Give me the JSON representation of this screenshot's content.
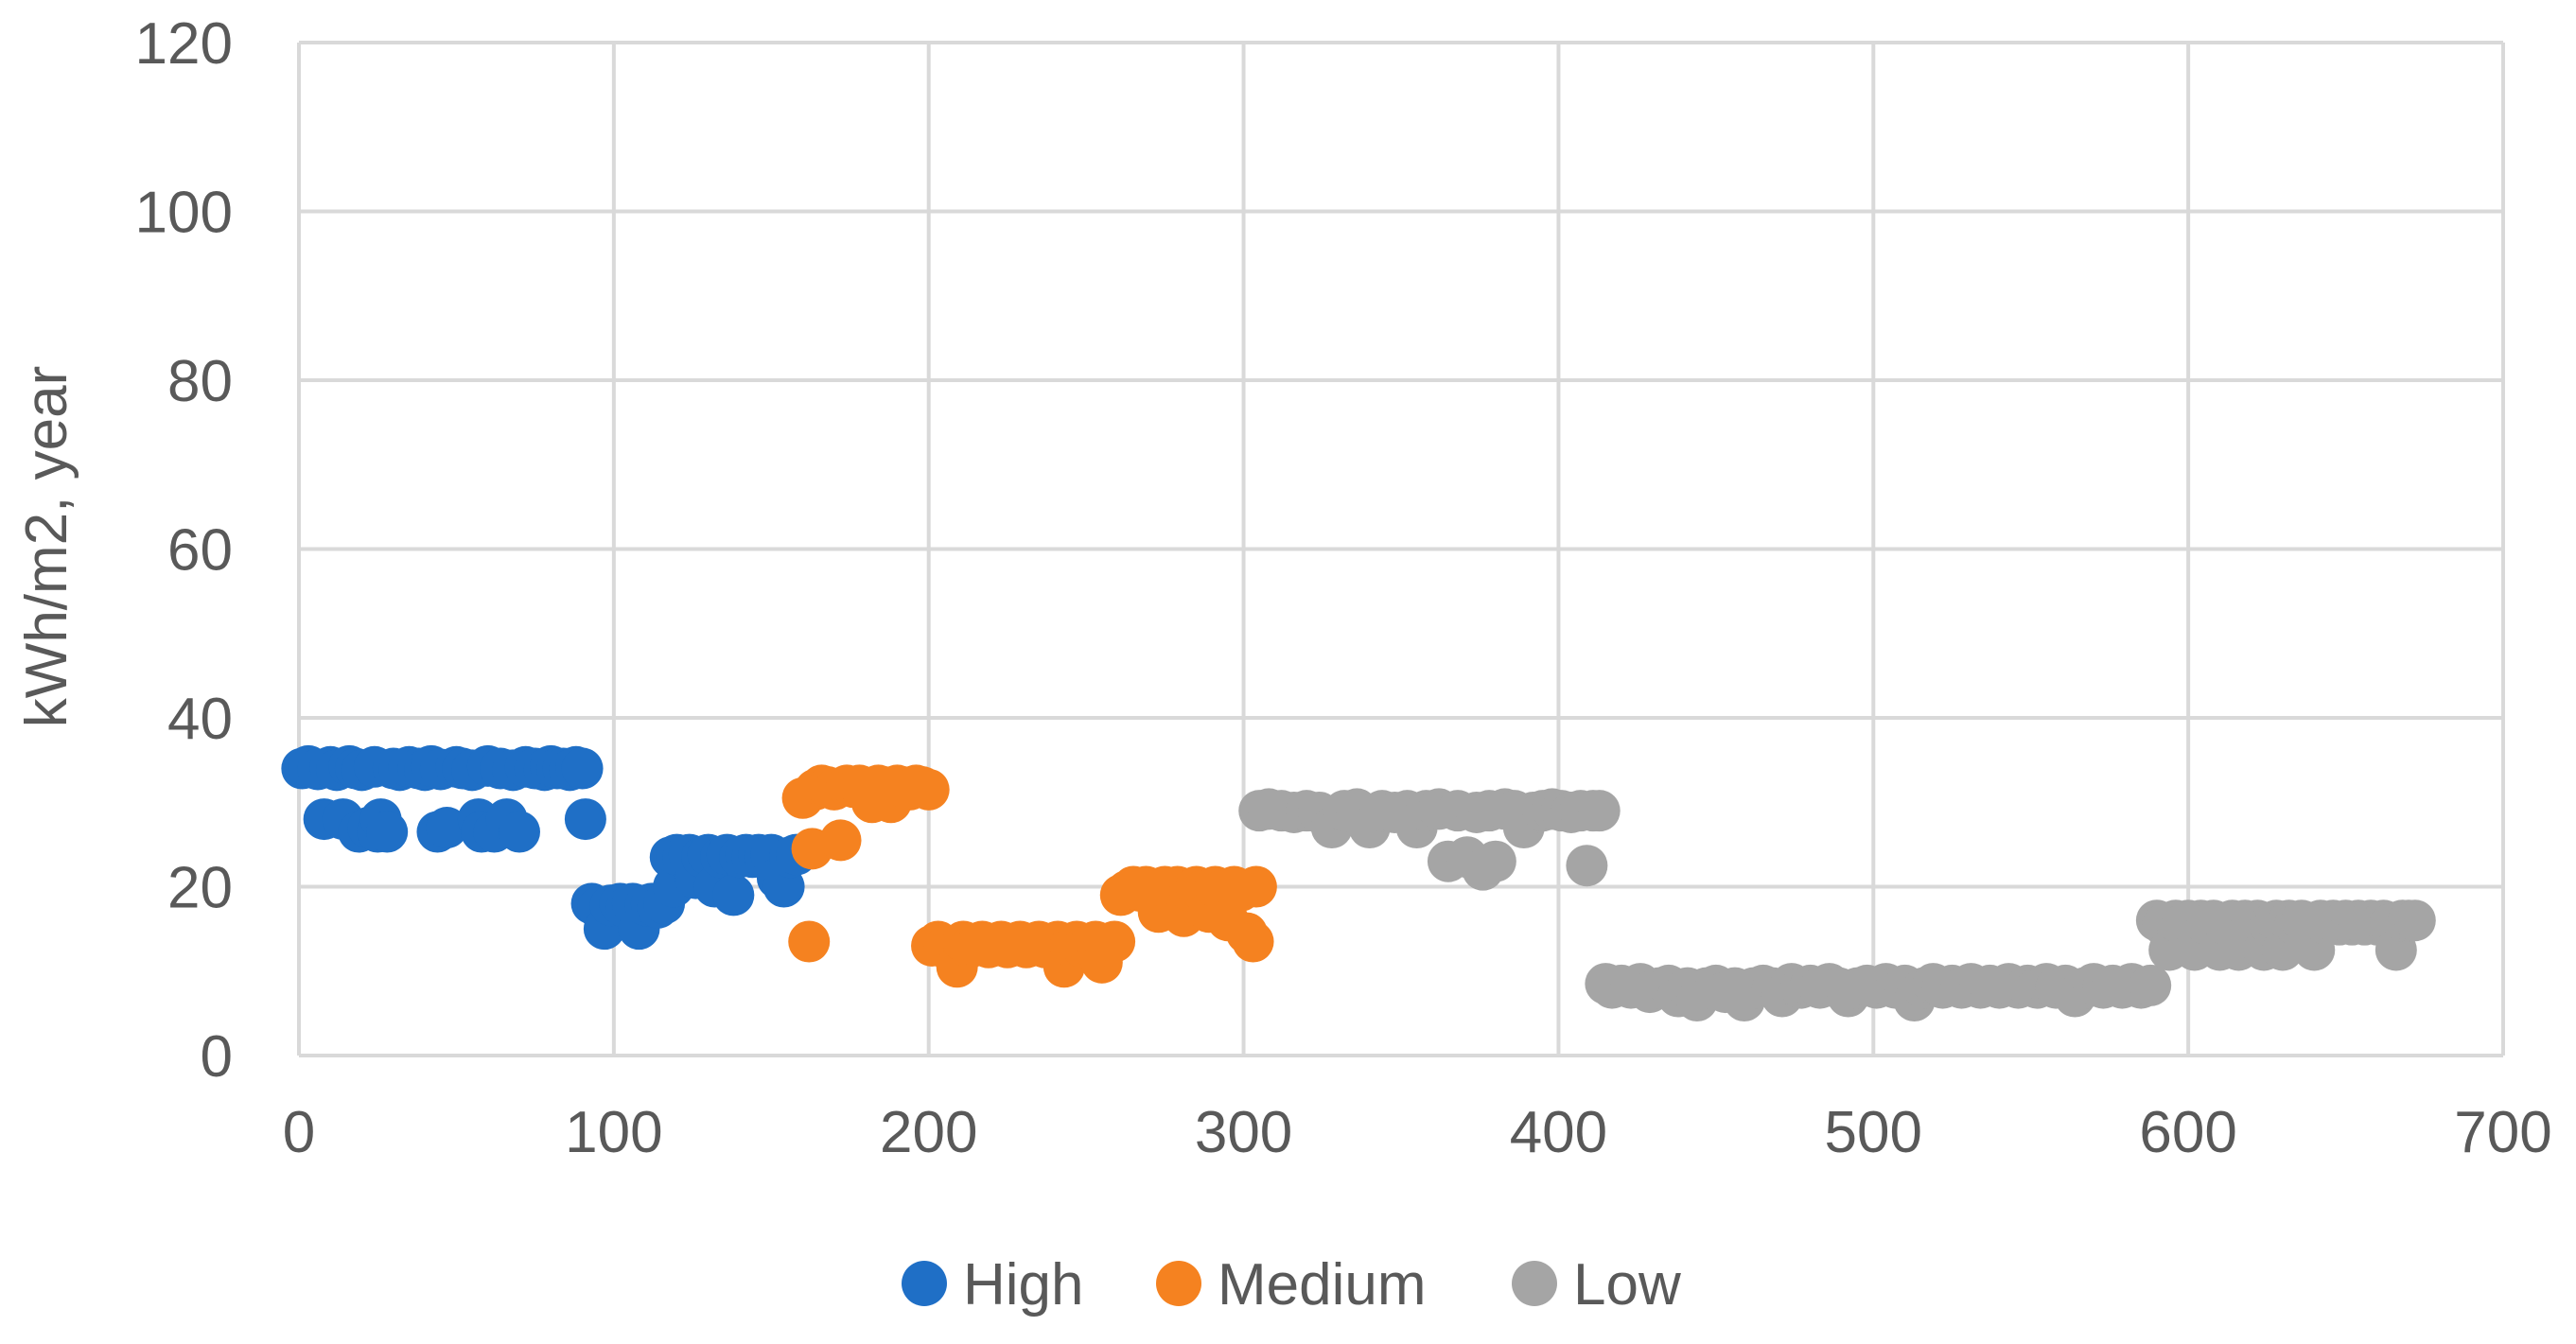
{
  "chart_data": {
    "type": "scatter",
    "title": "",
    "xlabel": "",
    "ylabel": "kWh/m2, year",
    "xlim": [
      0,
      700
    ],
    "ylim": [
      0,
      120
    ],
    "xticks": [
      0,
      100,
      200,
      300,
      400,
      500,
      600,
      700
    ],
    "yticks": [
      0,
      20,
      40,
      60,
      80,
      100,
      120
    ],
    "grid": true,
    "legend_position": "bottom",
    "series": [
      {
        "name": "High",
        "color": "#1f6fc6",
        "points": [
          [
            1,
            34
          ],
          [
            3,
            34.3
          ],
          [
            6,
            33.9
          ],
          [
            8,
            28
          ],
          [
            10,
            34.2
          ],
          [
            12,
            33.8
          ],
          [
            14,
            28
          ],
          [
            16,
            34.3
          ],
          [
            18,
            34
          ],
          [
            19,
            26.5
          ],
          [
            20,
            33.8
          ],
          [
            22,
            27
          ],
          [
            24,
            34.2
          ],
          [
            25,
            26.5
          ],
          [
            26,
            28
          ],
          [
            28,
            26.5
          ],
          [
            30,
            34
          ],
          [
            32,
            33.8
          ],
          [
            35,
            34.2
          ],
          [
            38,
            34
          ],
          [
            40,
            33.8
          ],
          [
            42,
            34.3
          ],
          [
            44,
            26.5
          ],
          [
            45,
            33.9
          ],
          [
            47,
            27
          ],
          [
            50,
            34.2
          ],
          [
            52,
            34
          ],
          [
            55,
            33.8
          ],
          [
            57,
            28
          ],
          [
            58,
            26.5
          ],
          [
            60,
            34.3
          ],
          [
            62,
            26.5
          ],
          [
            64,
            34
          ],
          [
            66,
            28
          ],
          [
            68,
            33.8
          ],
          [
            70,
            26.5
          ],
          [
            72,
            34.2
          ],
          [
            75,
            34
          ],
          [
            78,
            33.8
          ],
          [
            80,
            34.3
          ],
          [
            82,
            34
          ],
          [
            84,
            34
          ],
          [
            86,
            33.8
          ],
          [
            88,
            34.2
          ],
          [
            90,
            34
          ],
          [
            91,
            28
          ],
          [
            93,
            18
          ],
          [
            95,
            17.5
          ],
          [
            97,
            15
          ],
          [
            99,
            17.8
          ],
          [
            102,
            18
          ],
          [
            104,
            17.5
          ],
          [
            106,
            18
          ],
          [
            108,
            15
          ],
          [
            110,
            17.8
          ],
          [
            112,
            18
          ],
          [
            114,
            17.5
          ],
          [
            116,
            18
          ],
          [
            118,
            23.5
          ],
          [
            119,
            20
          ],
          [
            120,
            23.8
          ],
          [
            122,
            23.5
          ],
          [
            124,
            23.8
          ],
          [
            126,
            21
          ],
          [
            128,
            23.5
          ],
          [
            130,
            23.8
          ],
          [
            132,
            20
          ],
          [
            134,
            23.5
          ],
          [
            136,
            23.8
          ],
          [
            138,
            19
          ],
          [
            140,
            23.5
          ],
          [
            142,
            23.8
          ],
          [
            144,
            23.5
          ],
          [
            146,
            23.8
          ],
          [
            148,
            23.5
          ],
          [
            150,
            23.8
          ],
          [
            152,
            21
          ],
          [
            154,
            20
          ],
          [
            156,
            23.5
          ],
          [
            158,
            23.8
          ]
        ]
      },
      {
        "name": "Medium",
        "color": "#f58220",
        "points": [
          [
            160,
            30.5
          ],
          [
            162,
            13.5
          ],
          [
            163,
            24.5
          ],
          [
            164,
            31.5
          ],
          [
            166,
            32
          ],
          [
            168,
            31.8
          ],
          [
            170,
            31.5
          ],
          [
            172,
            25.5
          ],
          [
            174,
            32
          ],
          [
            176,
            31.8
          ],
          [
            178,
            32
          ],
          [
            180,
            31.5
          ],
          [
            182,
            30
          ],
          [
            184,
            32
          ],
          [
            186,
            31.8
          ],
          [
            188,
            30
          ],
          [
            190,
            32
          ],
          [
            192,
            31.8
          ],
          [
            194,
            31.5
          ],
          [
            196,
            32
          ],
          [
            198,
            31.8
          ],
          [
            200,
            31.5
          ],
          [
            201,
            13
          ],
          [
            203,
            13.5
          ],
          [
            205,
            12.8
          ],
          [
            207,
            13
          ],
          [
            209,
            10.5
          ],
          [
            211,
            13.5
          ],
          [
            213,
            12.8
          ],
          [
            215,
            13
          ],
          [
            217,
            13.5
          ],
          [
            219,
            12.8
          ],
          [
            221,
            13
          ],
          [
            223,
            13.5
          ],
          [
            225,
            12.8
          ],
          [
            227,
            13
          ],
          [
            229,
            13.5
          ],
          [
            231,
            12.8
          ],
          [
            233,
            13
          ],
          [
            235,
            13.5
          ],
          [
            237,
            12.8
          ],
          [
            239,
            13
          ],
          [
            241,
            13.5
          ],
          [
            243,
            10.5
          ],
          [
            245,
            13
          ],
          [
            247,
            13.5
          ],
          [
            249,
            12.8
          ],
          [
            251,
            13
          ],
          [
            253,
            13.5
          ],
          [
            255,
            11
          ],
          [
            257,
            13
          ],
          [
            259,
            13.5
          ],
          [
            261,
            19
          ],
          [
            263,
            19.5
          ],
          [
            265,
            20
          ],
          [
            267,
            19.5
          ],
          [
            269,
            20
          ],
          [
            271,
            19.5
          ],
          [
            273,
            17
          ],
          [
            275,
            20
          ],
          [
            277,
            19.5
          ],
          [
            279,
            20
          ],
          [
            281,
            16.5
          ],
          [
            283,
            19.5
          ],
          [
            285,
            20
          ],
          [
            287,
            19.5
          ],
          [
            289,
            17
          ],
          [
            291,
            20
          ],
          [
            293,
            19.5
          ],
          [
            295,
            16
          ],
          [
            297,
            20
          ],
          [
            299,
            19.5
          ],
          [
            301,
            14.5
          ],
          [
            303,
            13.5
          ],
          [
            304,
            20
          ]
        ]
      },
      {
        "name": "Low",
        "color": "#a5a5a5",
        "points": [
          [
            305,
            29
          ],
          [
            308,
            29.2
          ],
          [
            312,
            29
          ],
          [
            316,
            28.8
          ],
          [
            320,
            29
          ],
          [
            324,
            28.8
          ],
          [
            328,
            27
          ],
          [
            332,
            29
          ],
          [
            336,
            29.2
          ],
          [
            340,
            27
          ],
          [
            344,
            29
          ],
          [
            348,
            28.8
          ],
          [
            352,
            29
          ],
          [
            355,
            27
          ],
          [
            358,
            29
          ],
          [
            362,
            29.2
          ],
          [
            365,
            23
          ],
          [
            368,
            29
          ],
          [
            371,
            23.5
          ],
          [
            374,
            28.8
          ],
          [
            376,
            22
          ],
          [
            378,
            29
          ],
          [
            380,
            23
          ],
          [
            383,
            29.2
          ],
          [
            386,
            29
          ],
          [
            389,
            27
          ],
          [
            392,
            28.8
          ],
          [
            395,
            29
          ],
          [
            398,
            29.2
          ],
          [
            401,
            29
          ],
          [
            404,
            28.8
          ],
          [
            407,
            29
          ],
          [
            409,
            22.5
          ],
          [
            411,
            29
          ],
          [
            413,
            29
          ],
          [
            415,
            8.5
          ],
          [
            417,
            8
          ],
          [
            420,
            8.3
          ],
          [
            423,
            8
          ],
          [
            426,
            8.5
          ],
          [
            429,
            7.5
          ],
          [
            432,
            8
          ],
          [
            435,
            8.3
          ],
          [
            438,
            7
          ],
          [
            441,
            8
          ],
          [
            444,
            6.5
          ],
          [
            447,
            8
          ],
          [
            450,
            8.3
          ],
          [
            453,
            7.5
          ],
          [
            456,
            8
          ],
          [
            459,
            6.5
          ],
          [
            462,
            8
          ],
          [
            465,
            8.3
          ],
          [
            468,
            8
          ],
          [
            471,
            7
          ],
          [
            474,
            8.5
          ],
          [
            477,
            8
          ],
          [
            480,
            8.3
          ],
          [
            483,
            8
          ],
          [
            486,
            8.5
          ],
          [
            489,
            8
          ],
          [
            492,
            7
          ],
          [
            495,
            8
          ],
          [
            498,
            8.3
          ],
          [
            501,
            8
          ],
          [
            504,
            8.5
          ],
          [
            507,
            8
          ],
          [
            510,
            8.3
          ],
          [
            513,
            6.5
          ],
          [
            516,
            8
          ],
          [
            519,
            8.5
          ],
          [
            522,
            8
          ],
          [
            525,
            8.3
          ],
          [
            528,
            8
          ],
          [
            531,
            8.5
          ],
          [
            534,
            8
          ],
          [
            537,
            8.3
          ],
          [
            540,
            8
          ],
          [
            543,
            8.5
          ],
          [
            546,
            8
          ],
          [
            549,
            8.3
          ],
          [
            552,
            8
          ],
          [
            555,
            8.5
          ],
          [
            558,
            8
          ],
          [
            561,
            8.3
          ],
          [
            564,
            7
          ],
          [
            567,
            8
          ],
          [
            570,
            8.5
          ],
          [
            573,
            8
          ],
          [
            576,
            8.3
          ],
          [
            579,
            8
          ],
          [
            582,
            8.5
          ],
          [
            585,
            8
          ],
          [
            588,
            8.3
          ],
          [
            590,
            16
          ],
          [
            592,
            15.5
          ],
          [
            594,
            12.5
          ],
          [
            596,
            16
          ],
          [
            598,
            15.5
          ],
          [
            600,
            16
          ],
          [
            602,
            12.5
          ],
          [
            604,
            16
          ],
          [
            606,
            15.5
          ],
          [
            608,
            16
          ],
          [
            610,
            12.5
          ],
          [
            612,
            15.5
          ],
          [
            614,
            16
          ],
          [
            616,
            12.5
          ],
          [
            618,
            16
          ],
          [
            620,
            15.5
          ],
          [
            622,
            16
          ],
          [
            624,
            12.5
          ],
          [
            626,
            15.5
          ],
          [
            628,
            16
          ],
          [
            630,
            12.5
          ],
          [
            632,
            16
          ],
          [
            634,
            15.5
          ],
          [
            636,
            16
          ],
          [
            638,
            15.5
          ],
          [
            640,
            12.5
          ],
          [
            642,
            16
          ],
          [
            644,
            15.5
          ],
          [
            646,
            16
          ],
          [
            648,
            15.5
          ],
          [
            650,
            16
          ],
          [
            652,
            15.5
          ],
          [
            654,
            16
          ],
          [
            656,
            15.5
          ],
          [
            658,
            16
          ],
          [
            660,
            15.5
          ],
          [
            662,
            16
          ],
          [
            664,
            15.5
          ],
          [
            666,
            12.5
          ],
          [
            668,
            16
          ],
          [
            670,
            16
          ],
          [
            672,
            16
          ]
        ]
      }
    ]
  }
}
